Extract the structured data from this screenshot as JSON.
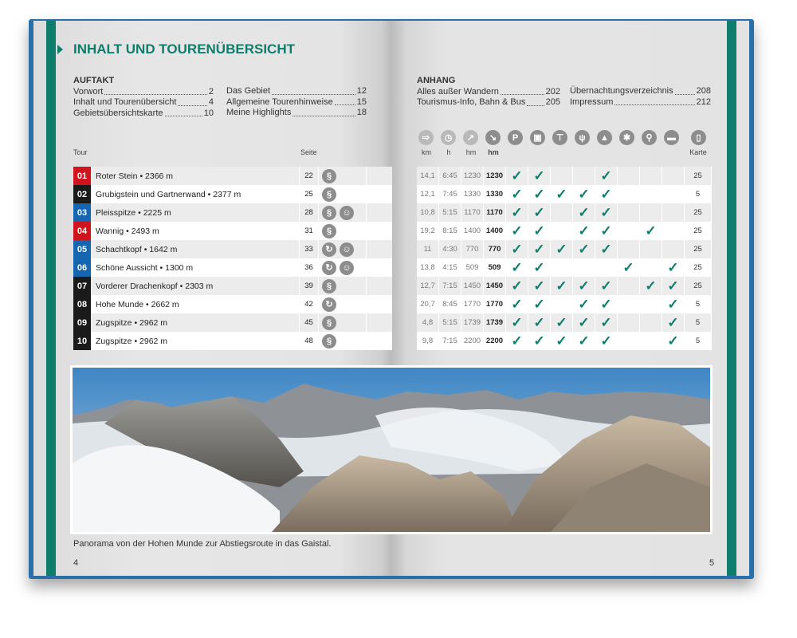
{
  "title": "INHALT UND TOURENÜBERSICHT",
  "auftakt": {
    "heading": "AUFTAKT",
    "items": [
      {
        "label": "Vorwort",
        "page": "2"
      },
      {
        "label": "Inhalt und Tourenübersicht",
        "page": "4"
      },
      {
        "label": "Gebietsübersichtskarte",
        "page": "10"
      },
      {
        "label": "Das Gebiet",
        "page": "12"
      },
      {
        "label": "Allgemeine Tourenhinweise",
        "page": "15"
      },
      {
        "label": "Meine Highlights",
        "page": "18"
      }
    ]
  },
  "anhang": {
    "heading": "ANHANG",
    "items": [
      {
        "label": "Alles außer Wandern",
        "page": "202"
      },
      {
        "label": "Tourismus-Info, Bahn & Bus",
        "page": "205"
      },
      {
        "label": "Übernachtungsverzeichnis",
        "page": "208"
      },
      {
        "label": "Impressum",
        "page": "212"
      }
    ]
  },
  "table": {
    "headers": {
      "tour": "Tour",
      "seite": "Seite",
      "km": "km",
      "h": "h",
      "hm_up": "hm",
      "hm_down": "hm",
      "karte": "Karte"
    },
    "header_icons": [
      "signpost-icon",
      "clock-icon",
      "ascent-icon",
      "descent-icon",
      "parking-icon",
      "bus-icon",
      "cable-car-icon",
      "restaurant-icon",
      "summit-icon",
      "winter-icon",
      "bike-icon",
      "lodging-icon",
      "map-icon"
    ],
    "feature_columns": [
      "parking",
      "bus",
      "cable-car",
      "restaurant",
      "summit",
      "winter",
      "bike",
      "lodging"
    ],
    "check_color": "#0f7d6b",
    "rows": [
      {
        "no": "01",
        "color": "#d0141e",
        "name": "Roter Stein • 2366 m",
        "seite": "22",
        "icons": [
          "route"
        ],
        "km": "14,1",
        "h": "6:45",
        "up": "1230",
        "down": "1230",
        "checks": [
          1,
          1,
          0,
          0,
          1,
          0,
          0,
          0
        ],
        "karte": "25"
      },
      {
        "no": "02",
        "color": "#1a1a1a",
        "name": "Grubigstein und Gartnerwand • 2377 m",
        "seite": "25",
        "icons": [
          "route"
        ],
        "km": "12,1",
        "h": "7:45",
        "up": "1330",
        "down": "1330",
        "checks": [
          1,
          1,
          1,
          1,
          1,
          0,
          0,
          0
        ],
        "karte": "5"
      },
      {
        "no": "03",
        "color": "#1565b0",
        "name": "Pleisspitze • 2225 m",
        "seite": "28",
        "icons": [
          "route",
          "family"
        ],
        "km": "10,8",
        "h": "5:15",
        "up": "1170",
        "down": "1170",
        "checks": [
          1,
          1,
          0,
          1,
          1,
          0,
          0,
          0
        ],
        "karte": "25"
      },
      {
        "no": "04",
        "color": "#d0141e",
        "name": "Wannig • 2493 m",
        "seite": "31",
        "icons": [
          "route"
        ],
        "km": "19,2",
        "h": "8:15",
        "up": "1400",
        "down": "1400",
        "checks": [
          1,
          1,
          0,
          1,
          1,
          0,
          1,
          0
        ],
        "karte": "25"
      },
      {
        "no": "05",
        "color": "#1565b0",
        "name": "Schachtkopf • 1642 m",
        "seite": "33",
        "icons": [
          "loop",
          "family"
        ],
        "km": "11",
        "h": "4:30",
        "up": "770",
        "down": "770",
        "checks": [
          1,
          1,
          1,
          1,
          1,
          0,
          0,
          0
        ],
        "karte": "25"
      },
      {
        "no": "06",
        "color": "#1565b0",
        "name": "Schöne Aussicht • 1300 m",
        "seite": "36",
        "icons": [
          "loop",
          "family"
        ],
        "km": "13,8",
        "h": "4:15",
        "up": "509",
        "down": "509",
        "checks": [
          1,
          1,
          0,
          0,
          0,
          1,
          0,
          1
        ],
        "karte": "25"
      },
      {
        "no": "07",
        "color": "#1a1a1a",
        "name": "Vorderer Drachenkopf • 2303 m",
        "seite": "39",
        "icons": [
          "route"
        ],
        "km": "12,7",
        "h": "7:15",
        "up": "1450",
        "down": "1450",
        "checks": [
          1,
          1,
          1,
          1,
          1,
          0,
          1,
          1
        ],
        "karte": "25"
      },
      {
        "no": "08",
        "color": "#1a1a1a",
        "name": "Hohe Munde • 2662 m",
        "seite": "42",
        "icons": [
          "loop"
        ],
        "km": "20,7",
        "h": "8:45",
        "up": "1770",
        "down": "1770",
        "checks": [
          1,
          1,
          0,
          1,
          1,
          0,
          0,
          1
        ],
        "karte": "5"
      },
      {
        "no": "09",
        "color": "#1a1a1a",
        "name": "Zugspitze • 2962 m",
        "seite": "45",
        "icons": [
          "route"
        ],
        "km": "4,8",
        "h": "5:15",
        "up": "1739",
        "down": "1739",
        "checks": [
          1,
          1,
          1,
          1,
          1,
          0,
          0,
          1
        ],
        "karte": "5"
      },
      {
        "no": "10",
        "color": "#1a1a1a",
        "name": "Zugspitze • 2962 m",
        "seite": "48",
        "icons": [
          "route"
        ],
        "km": "9,8",
        "h": "7:15",
        "up": "2200",
        "down": "2200",
        "checks": [
          1,
          1,
          1,
          1,
          1,
          0,
          0,
          1
        ],
        "karte": "5"
      }
    ]
  },
  "caption": "Panorama von der Hohen Munde zur Abstiegsroute in das Gaistal.",
  "page_left": "4",
  "page_right": "5",
  "accent": "#0f7d6b"
}
